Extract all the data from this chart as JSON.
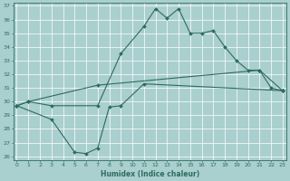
{
  "xlabel": "Humidex (Indice chaleur)",
  "line1_points": [
    [
      0,
      29.7
    ],
    [
      1,
      30.0
    ],
    [
      3,
      29.7
    ],
    [
      7,
      29.7
    ],
    [
      9,
      33.5
    ],
    [
      11,
      35.5
    ],
    [
      12,
      36.8
    ],
    [
      13,
      36.1
    ],
    [
      14,
      36.8
    ],
    [
      15,
      35.0
    ],
    [
      16,
      35.0
    ],
    [
      17,
      35.2
    ],
    [
      18,
      34.0
    ],
    [
      19,
      33.0
    ],
    [
      20,
      32.3
    ],
    [
      21,
      32.3
    ],
    [
      22,
      31.0
    ],
    [
      23,
      30.8
    ]
  ],
  "line2_points": [
    [
      0,
      29.7
    ],
    [
      1,
      30.0
    ],
    [
      7,
      31.2
    ],
    [
      21,
      32.3
    ],
    [
      23,
      30.8
    ]
  ],
  "line3_points": [
    [
      0,
      29.7
    ],
    [
      3,
      28.7
    ],
    [
      5,
      26.3
    ],
    [
      6,
      26.2
    ],
    [
      7,
      26.6
    ],
    [
      8,
      29.6
    ],
    [
      9,
      29.7
    ],
    [
      11,
      31.3
    ],
    [
      23,
      30.8
    ]
  ],
  "line_color": "#2d6b5e",
  "bg_color": "#aacfcf",
  "grid_color": "#ffffff",
  "ylim_min": 26,
  "ylim_max": 37,
  "xlim_min": -0.3,
  "xlim_max": 23.3,
  "yticks": [
    26,
    27,
    28,
    29,
    30,
    31,
    32,
    33,
    34,
    35,
    36,
    37
  ],
  "xticks": [
    0,
    1,
    2,
    3,
    4,
    5,
    6,
    7,
    8,
    9,
    10,
    11,
    12,
    13,
    14,
    15,
    16,
    17,
    18,
    19,
    20,
    21,
    22,
    23
  ]
}
